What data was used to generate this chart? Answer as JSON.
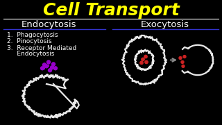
{
  "bg_color": "#000000",
  "title": "Cell Transport",
  "title_color": "#ffff00",
  "title_fontsize": 18,
  "section_left": "Endocytosis",
  "section_right": "Exocytosis",
  "section_color": "#ffffff",
  "section_fontsize": 9.5,
  "white_line_color": "#ffffff",
  "blue_line_color": "#3333cc",
  "list_items": [
    "1.  Phagocytosis",
    "2.  Pinocytosis",
    "3.  Receptor Mediated",
    "     Endocytosis"
  ],
  "list_color": "#ffffff",
  "list_fontsize": 6.5,
  "arrow_color": "#888888",
  "cell_outline_color": "#e8e8e8",
  "vesicle_color": "#cc2222",
  "phago_dot_color": "#9900cc"
}
